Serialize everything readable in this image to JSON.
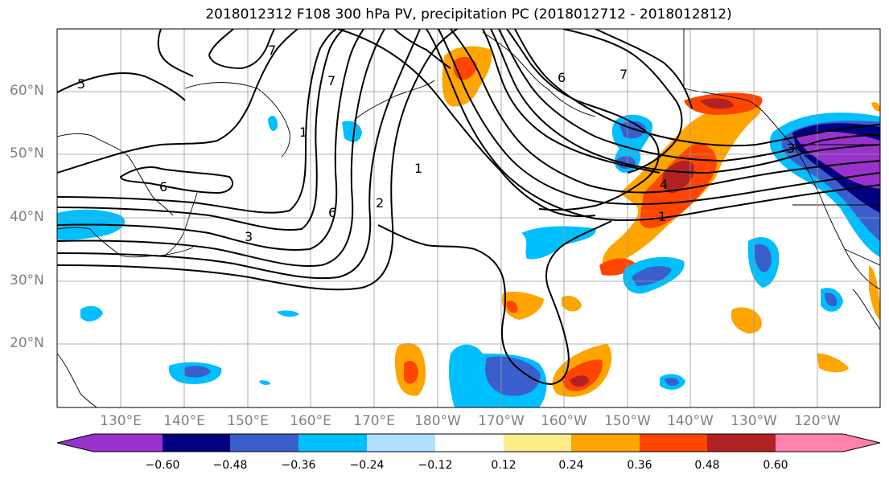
{
  "title": "2018012312 F108 300 hPa PV, precipitation PC (2018012712 - 2018012812)",
  "lat_labels": [
    "60°N",
    "50°N",
    "40°N",
    "30°N",
    "20°N"
  ],
  "lon_labels": [
    "130°E",
    "140°E",
    "150°E",
    "160°E",
    "170°E",
    "180°W",
    "170°W",
    "160°W",
    "150°W",
    "140°W",
    "130°W",
    "120°W"
  ],
  "contour_labels": [
    "5",
    "7",
    "7",
    "6",
    "7",
    "6",
    "1",
    "2",
    "6",
    "3",
    "1",
    "4",
    "1",
    "3"
  ],
  "colorbar": {
    "tick_labels": [
      "−0.60",
      "−0.48",
      "−0.36",
      "−0.24",
      "−0.12",
      "0.12",
      "0.24",
      "0.36",
      "0.48",
      "0.60"
    ],
    "colors": [
      "#9932cc",
      "#000080",
      "#3a5fcd",
      "#00bfff",
      "#b0e2ff",
      "#ffffff",
      "#ffec8b",
      "#ffa500",
      "#ff4500",
      "#b22222",
      "#ff82ab"
    ]
  }
}
